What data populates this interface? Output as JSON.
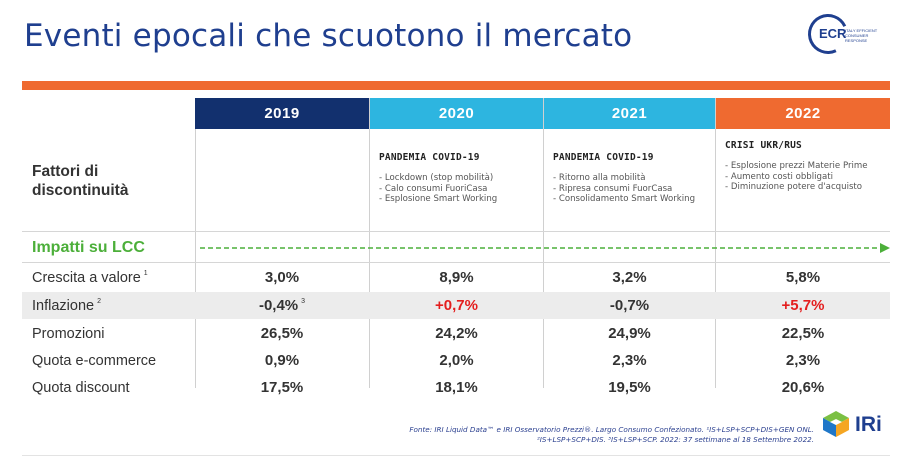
{
  "title": "Eventi epocali che scuotono il mercato",
  "logo": {
    "text": "ECR",
    "subtitle": "ITALY EFFICIENT CONSUMER RESPONSE"
  },
  "years": [
    "2019",
    "2020",
    "2021",
    "2022"
  ],
  "factors_label": "Fattori di discontinuità",
  "events": [
    {
      "heading": "",
      "items": []
    },
    {
      "heading": "PANDEMIA COVID-19",
      "items": [
        "Lockdown (stop mobilità)",
        "Calo consumi FuoriCasa",
        "Esplosione Smart Working"
      ]
    },
    {
      "heading": "PANDEMIA COVID-19",
      "items": [
        "Ritorno alla mobilità",
        "Ripresa consumi FuorCasa",
        "Consolidamento Smart Working"
      ]
    },
    {
      "heading": "CRISI UKR/RUS",
      "items": [
        "Esplosione prezzi Materie Prime",
        "Aumento costi obbligati",
        "Diminuzione potere d'acquisto"
      ]
    }
  ],
  "impacts_label": "Impatti su LCC",
  "rows": [
    {
      "label": "Crescita a valore",
      "note": "1",
      "values": [
        "3,0%",
        "8,9%",
        "3,2%",
        "5,8%"
      ],
      "value_notes": [
        "",
        "",
        "",
        ""
      ],
      "highlight": [
        false,
        false,
        false,
        false
      ]
    },
    {
      "label": "Inflazione",
      "note": "2",
      "values": [
        "-0,4%",
        "+0,7%",
        "-0,7%",
        "+5,7%"
      ],
      "value_notes": [
        "3",
        "",
        "",
        ""
      ],
      "highlight": [
        false,
        true,
        false,
        true
      ]
    },
    {
      "label": "Promozioni",
      "note": "",
      "values": [
        "26,5%",
        "24,2%",
        "24,9%",
        "22,5%"
      ],
      "value_notes": [
        "",
        "",
        "",
        ""
      ],
      "highlight": [
        false,
        false,
        false,
        false
      ]
    },
    {
      "label": "Quota e-commerce",
      "note": "",
      "values": [
        "0,9%",
        "2,0%",
        "2,3%",
        "2,3%"
      ],
      "value_notes": [
        "",
        "",
        "",
        ""
      ],
      "highlight": [
        false,
        false,
        false,
        false
      ]
    },
    {
      "label": "Quota discount",
      "note": "",
      "values": [
        "17,5%",
        "18,1%",
        "19,5%",
        "20,6%"
      ],
      "value_notes": [
        "",
        "",
        "",
        ""
      ],
      "highlight": [
        false,
        false,
        false,
        false
      ]
    }
  ],
  "source": {
    "line1": "Fonte: IRI Liquid Data™ e IRI Osservatorio Prezzi®. Largo Consumo Confezionato. ¹IS+LSP+SCP+DIS+GEN ONL.",
    "line2": "²IS+LSP+SCP+DIS. ³IS+LSP+SCP. 2022: 37 settimane al 18 Settembre 2022."
  },
  "iri_logo": "IRi",
  "colors": {
    "navy": "#12306e",
    "cyan": "#2db5e0",
    "orange": "#ef6a30",
    "green": "#4caf3a",
    "red": "#e41e1e"
  }
}
